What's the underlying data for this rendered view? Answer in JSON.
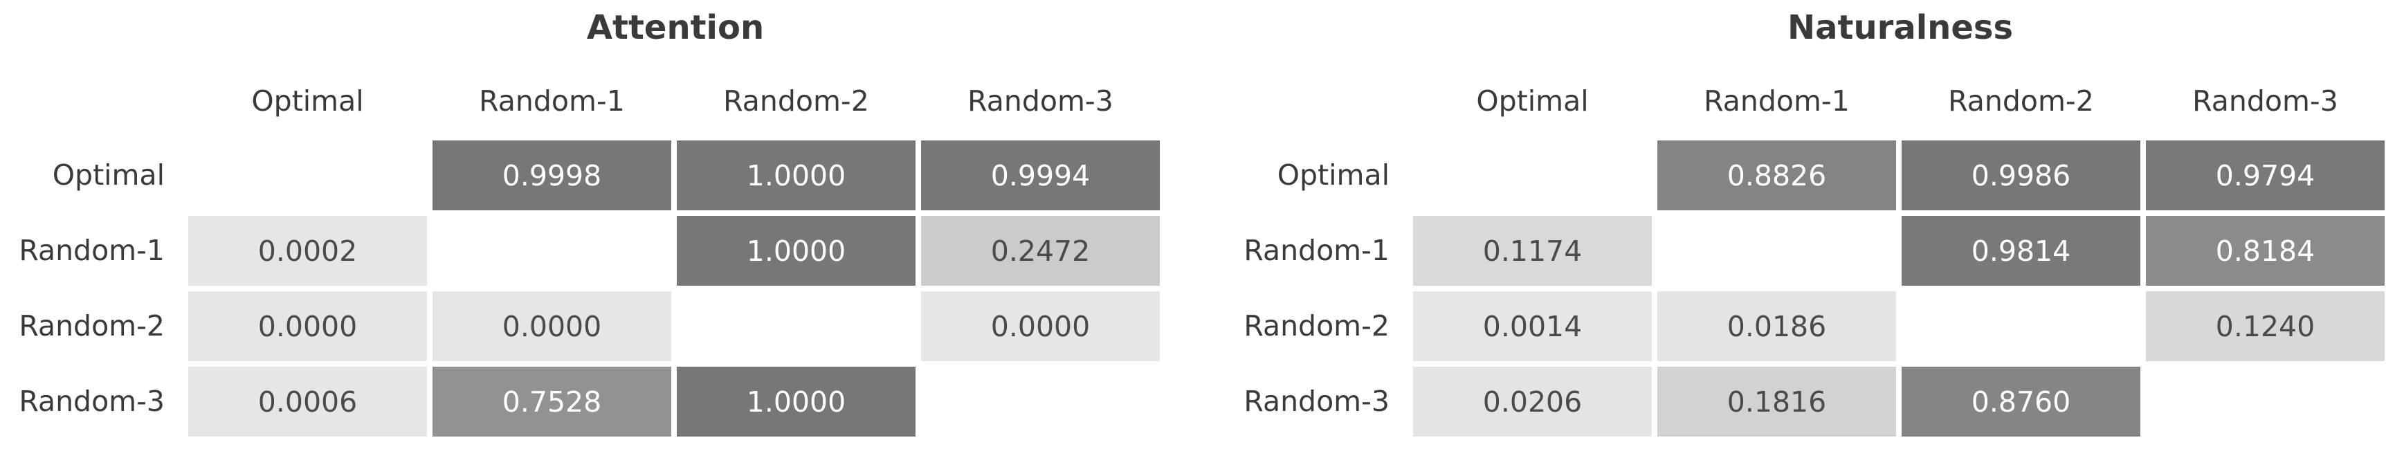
{
  "chart_data": [
    {
      "type": "heatmap",
      "title": "Attention",
      "rows": [
        "Optimal",
        "Random-1",
        "Random-2",
        "Random-3"
      ],
      "columns": [
        "Optimal",
        "Random-1",
        "Random-2",
        "Random-3"
      ],
      "values": [
        [
          null,
          "0.9998",
          "1.0000",
          "0.9994"
        ],
        [
          "0.0002",
          null,
          "1.0000",
          "0.2472"
        ],
        [
          "0.0000",
          "0.0000",
          null,
          "0.0000"
        ],
        [
          "0.0006",
          "0.7528",
          "1.0000",
          null
        ]
      ]
    },
    {
      "type": "heatmap",
      "title": "Naturalness",
      "rows": [
        "Optimal",
        "Random-1",
        "Random-2",
        "Random-3"
      ],
      "columns": [
        "Optimal",
        "Random-1",
        "Random-2",
        "Random-3"
      ],
      "values": [
        [
          null,
          "0.8826",
          "0.9986",
          "0.9794"
        ],
        [
          "0.1174",
          null,
          "0.9814",
          "0.8184"
        ],
        [
          "0.0014",
          "0.0186",
          null,
          "0.1240"
        ],
        [
          "0.0206",
          "0.1816",
          "0.8760",
          null
        ]
      ]
    }
  ],
  "colors": {
    "low": "#e6e6e7",
    "high": "#767779",
    "text_dark": "#4a4a4a",
    "text_light": "#ffffff"
  }
}
